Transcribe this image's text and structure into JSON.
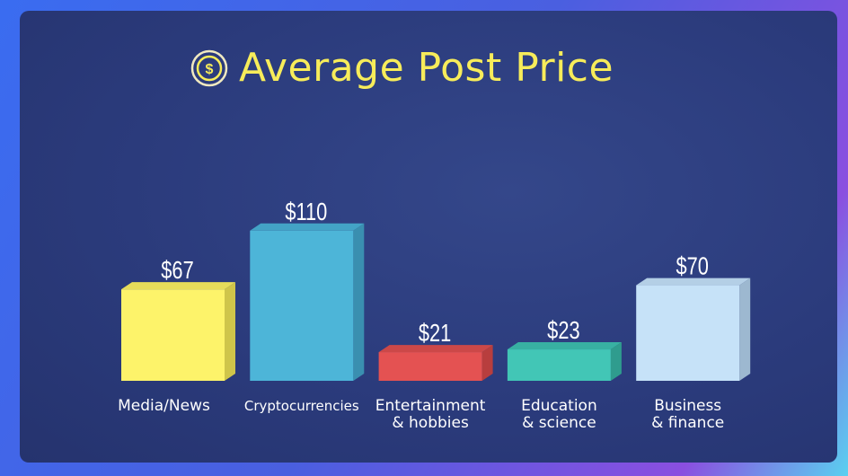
{
  "chart_data": {
    "type": "bar",
    "title": "Average Post Price",
    "title_icon": "dollar-coin-icon",
    "categories": [
      [
        "Media/News"
      ],
      [
        "Cryptocurrencies"
      ],
      [
        "Entertainment",
        "& hobbies"
      ],
      [
        "Education",
        "& science"
      ],
      [
        "Business",
        "& finance"
      ]
    ],
    "values": [
      67,
      110,
      21,
      23,
      70
    ],
    "value_labels": [
      "$67",
      "$110",
      "$21",
      "$23",
      "$70"
    ],
    "colors": [
      "#fdf36a",
      "#4db5d8",
      "#e45252",
      "#42c6b6",
      "#c6e2f8"
    ],
    "side_colors": [
      "#cfc54a",
      "#3a8fb0",
      "#b83e3e",
      "#2f9c8e",
      "#9db8d0"
    ],
    "top_colors": [
      "#e6dc5a",
      "#43a3c6",
      "#cc4848",
      "#38b0a2",
      "#b4cfe6"
    ],
    "ylim": [
      0,
      120
    ],
    "grid": false,
    "title_color": "#f7ec5a"
  }
}
